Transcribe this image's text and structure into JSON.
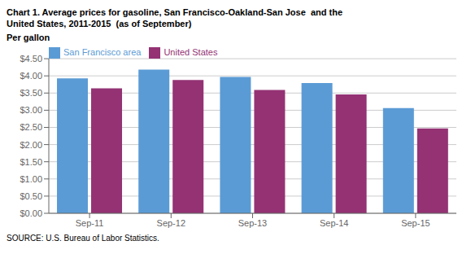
{
  "chart_data": {
    "type": "bar",
    "title": "Chart 1. Average prices for gasoline, San Francisco-Oakland-San Jose  and the\nUnited States, 2011-2015  (as of September)",
    "y_label": "Per gallon",
    "source": "SOURCE: U.S. Bureau of Labor Statistics.",
    "categories": [
      "Sep-11",
      "Sep-12",
      "Sep-13",
      "Sep-14",
      "Sep-15"
    ],
    "series": [
      {
        "name": "San Francisco area",
        "color": "#5B9BD5",
        "values": [
          3.93,
          4.18,
          3.97,
          3.79,
          3.06
        ]
      },
      {
        "name": "United States",
        "color": "#943274",
        "values": [
          3.64,
          3.88,
          3.59,
          3.46,
          2.47
        ]
      }
    ],
    "ylim": [
      0.0,
      4.5
    ],
    "yticks": [
      {
        "value": 0.0,
        "label": "$0.00"
      },
      {
        "value": 0.5,
        "label": "$0.50"
      },
      {
        "value": 1.0,
        "label": "$1.00"
      },
      {
        "value": 1.5,
        "label": "$1.50"
      },
      {
        "value": 2.0,
        "label": "$2.00"
      },
      {
        "value": 2.5,
        "label": "$2.50"
      },
      {
        "value": 3.0,
        "label": "$3.00"
      },
      {
        "value": 3.5,
        "label": "$3.50"
      },
      {
        "value": 4.0,
        "label": "$4.00"
      },
      {
        "value": 4.5,
        "label": "$4.50"
      }
    ],
    "grid": true,
    "legend": "upper left"
  }
}
